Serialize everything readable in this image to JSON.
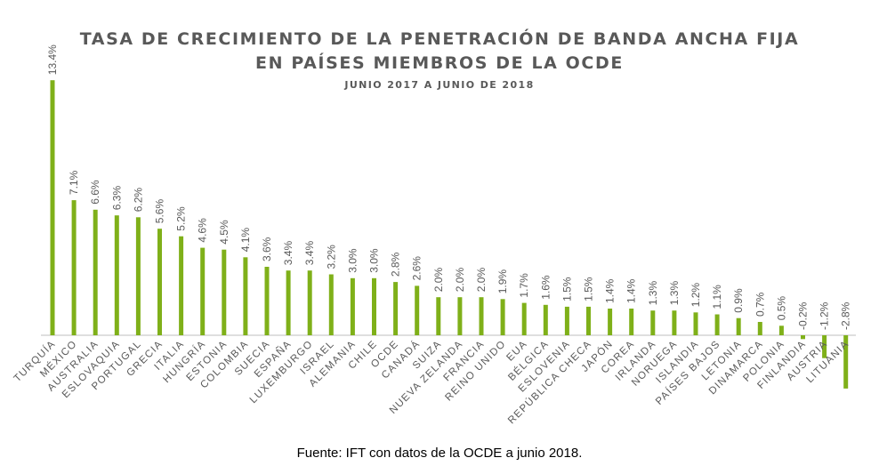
{
  "title_line1": "TASA DE CRECIMIENTO DE LA PENETRACIÓN DE BANDA ANCHA FIJA",
  "title_line2": "EN PAÍSES MIEMBROS DE LA OCDE",
  "subtitle": "JUNIO 2017 A JUNIO DE 2018",
  "source": "Fuente: IFT con datos de la OCDE a junio 2018.",
  "colors": {
    "bar": "#7fb019",
    "axis": "#bfbfbf",
    "text": "#595959"
  },
  "chart_data": {
    "type": "bar",
    "title": "TASA DE CRECIMIENTO DE LA PENETRACIÓN DE BANDA ANCHA FIJA EN PAÍSES MIEMBROS DE LA OCDE",
    "subtitle": "JUNIO 2017 A JUNIO DE 2018",
    "xlabel": "",
    "ylabel": "",
    "categories": [
      "TURQUÍA",
      "MÉXICO",
      "AUSTRALIA",
      "ESLOVAQUIA",
      "PORTUGAL",
      "GRECIA",
      "ITALIA",
      "HUNGRÍA",
      "ESTONIA",
      "COLOMBIA",
      "SUECIA",
      "ESPAÑA",
      "LUXEMBURGO",
      "ISRAEL",
      "ALEMANIA",
      "CHILE",
      "OCDE",
      "CANADÁ",
      "SUIZA",
      "NUEVA ZELANDA",
      "FRANCIA",
      "REINO UNIDO",
      "EUA",
      "BÉLGICA",
      "ESLOVENIA",
      "REPÚBLICA CHECA",
      "JAPÓN",
      "COREA",
      "IRLANDA",
      "NORUEGA",
      "ISLANDIA",
      "PAÍSES BAJOS",
      "LETONIA",
      "DINAMARCA",
      "POLONIA",
      "FINLANDIA",
      "AUSTRIA",
      "LITUANIA"
    ],
    "values": [
      13.4,
      7.1,
      6.6,
      6.3,
      6.2,
      5.6,
      5.2,
      4.6,
      4.5,
      4.1,
      3.6,
      3.4,
      3.4,
      3.2,
      3.0,
      3.0,
      2.8,
      2.6,
      2.0,
      2.0,
      2.0,
      1.9,
      1.7,
      1.6,
      1.5,
      1.5,
      1.4,
      1.4,
      1.3,
      1.3,
      1.2,
      1.1,
      0.9,
      0.7,
      0.5,
      -0.2,
      -1.2,
      -2.8
    ],
    "data_labels": [
      "13.4%",
      "7.1%",
      "6.6%",
      "6.3%",
      "6.2%",
      "5.6%",
      "5.2%",
      "4.6%",
      "4.5%",
      "4.1%",
      "3.6%",
      "3.4%",
      "3.4%",
      "3.2%",
      "3.0%",
      "3.0%",
      "2.8%",
      "2.6%",
      "2.0%",
      "2.0%",
      "2.0%",
      "1.9%",
      "1.7%",
      "1.6%",
      "1.5%",
      "1.5%",
      "1.4%",
      "1.4%",
      "1.3%",
      "1.3%",
      "1.2%",
      "1.1%",
      "0.9%",
      "0.7%",
      "0.5%",
      "-0.2%",
      "-1.2%",
      "-2.8%"
    ],
    "unit": "%",
    "grid": false,
    "legend": "none"
  }
}
